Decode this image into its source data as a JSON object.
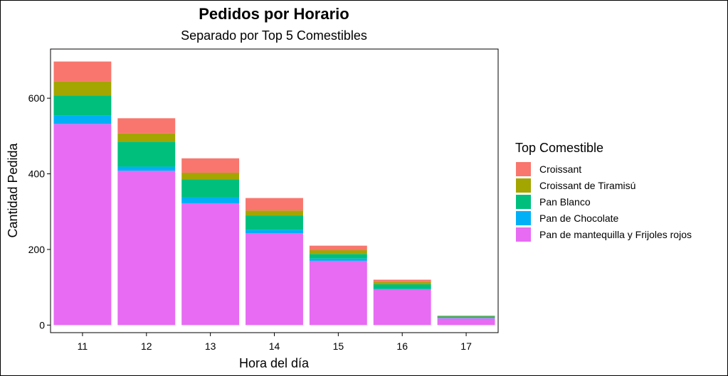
{
  "chart_data": {
    "type": "bar",
    "stacked": true,
    "title": "Pedidos por Horario",
    "subtitle": "Separado por Top 5 Comestibles",
    "xlabel": "Hora del día",
    "ylabel": "Cantidad Pedida",
    "ylim": [
      -20,
      730
    ],
    "yticks": [
      0,
      200,
      400,
      600
    ],
    "categories": [
      "11",
      "12",
      "13",
      "14",
      "15",
      "16",
      "17"
    ],
    "legend_title": "Top Comestible",
    "legend_position": "right",
    "grid": false,
    "series": [
      {
        "name": "Pan de mantequilla y Frijoles rojos",
        "color": "#E76BF3",
        "values": [
          532,
          408,
          322,
          243,
          170,
          94,
          18
        ]
      },
      {
        "name": "Pan de Chocolate",
        "color": "#00B0F6",
        "values": [
          23,
          11,
          16,
          9,
          6,
          2,
          1
        ]
      },
      {
        "name": "Pan Blanco",
        "color": "#00BF7D",
        "values": [
          52,
          66,
          47,
          38,
          12,
          12,
          4
        ]
      },
      {
        "name": "Croissant de Tiramisú",
        "color": "#A3A500",
        "values": [
          38,
          22,
          18,
          13,
          10,
          6,
          1
        ]
      },
      {
        "name": "Croissant",
        "color": "#F8766D",
        "values": [
          52,
          40,
          38,
          33,
          12,
          6,
          1
        ]
      }
    ],
    "legend_order": [
      "Croissant",
      "Croissant de Tiramisú",
      "Pan Blanco",
      "Pan de Chocolate",
      "Pan de mantequilla y Frijoles rojos"
    ]
  }
}
